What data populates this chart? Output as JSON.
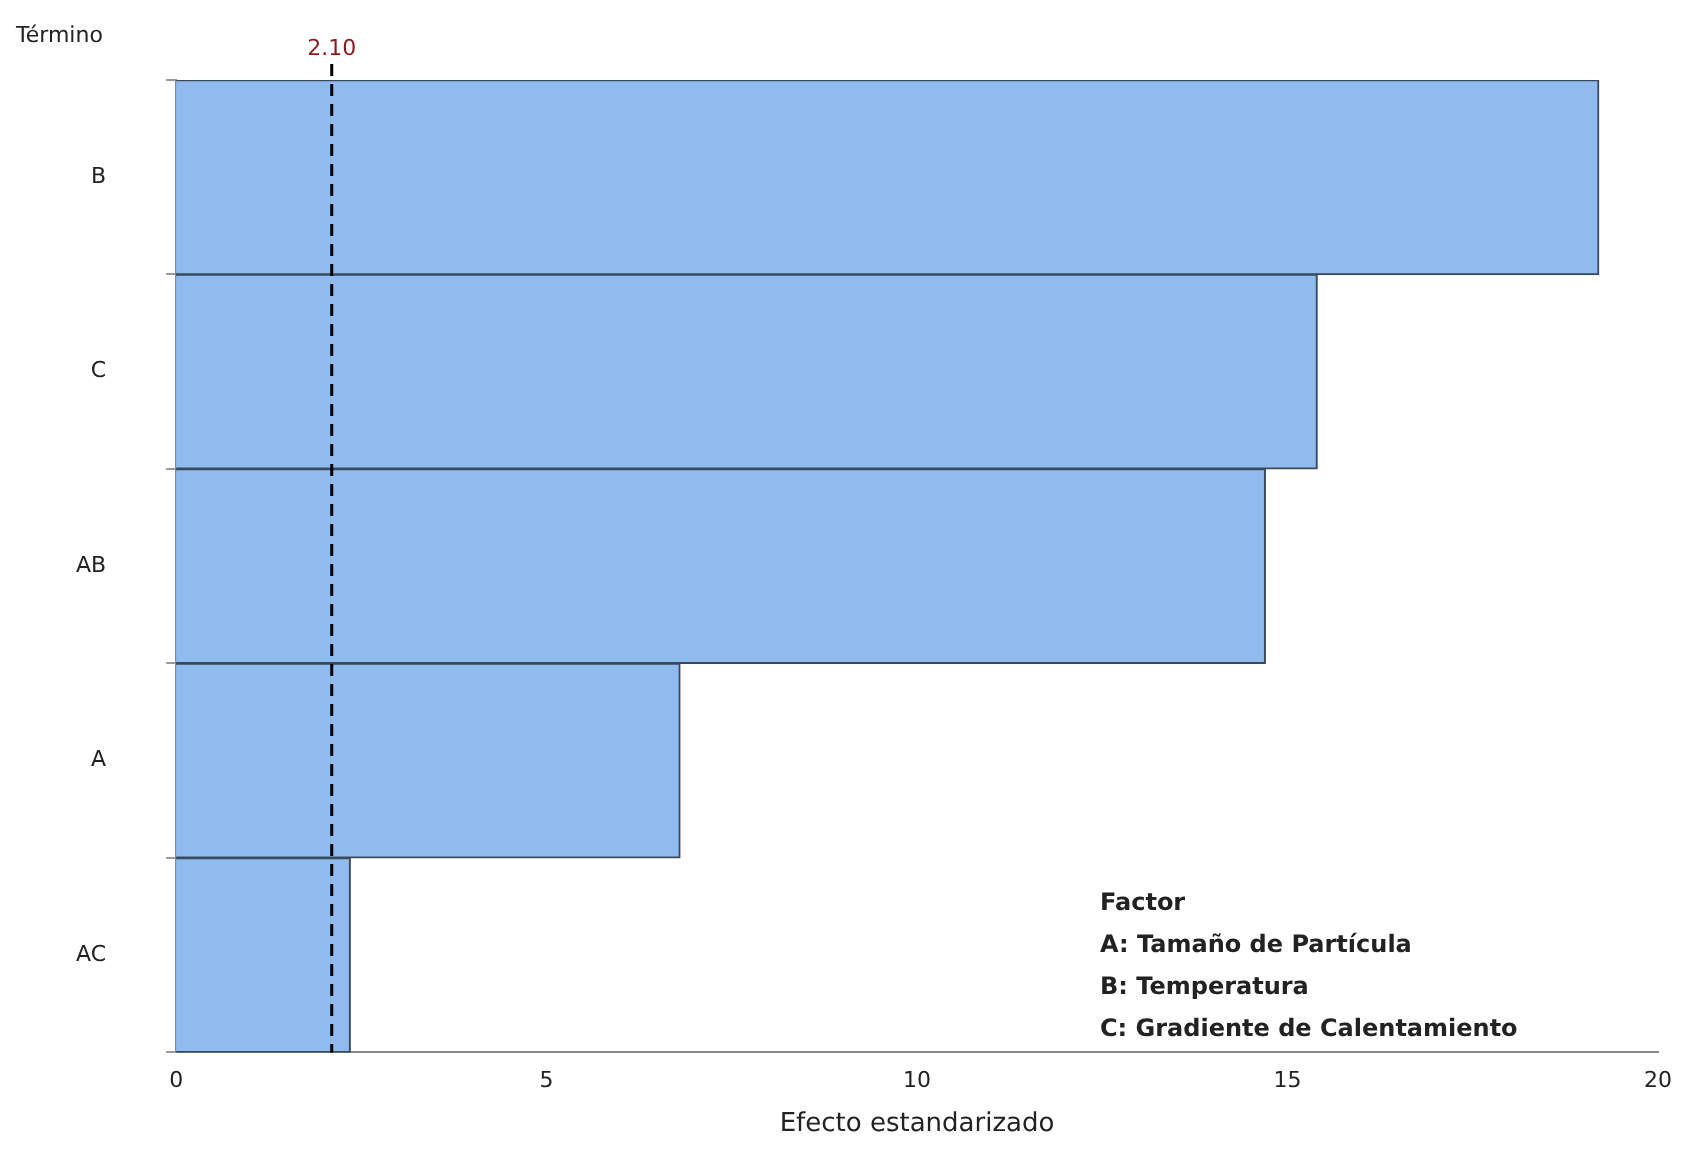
{
  "chart_data": {
    "type": "bar",
    "orientation": "horizontal",
    "xlabel": "Efecto estandarizado",
    "ylabel": "Término",
    "categories": [
      "B",
      "C",
      "AB",
      "A",
      "AC"
    ],
    "values": [
      19.2,
      15.4,
      14.7,
      6.8,
      2.35
    ],
    "color": "#8fbbef",
    "xlim": [
      0,
      20
    ],
    "xticks": [
      0,
      5,
      10,
      15,
      20
    ],
    "grid": false,
    "legend": false,
    "ref_lines": [
      {
        "axis": "x",
        "value": 2.1,
        "label": "2.10",
        "color": "#000000",
        "line_style": "dashed"
      }
    ],
    "annotations": [
      "Factor",
      "A: Tamaño de Partícula",
      "B: Temperatura",
      "C: Gradiente de Calentamiento"
    ]
  }
}
